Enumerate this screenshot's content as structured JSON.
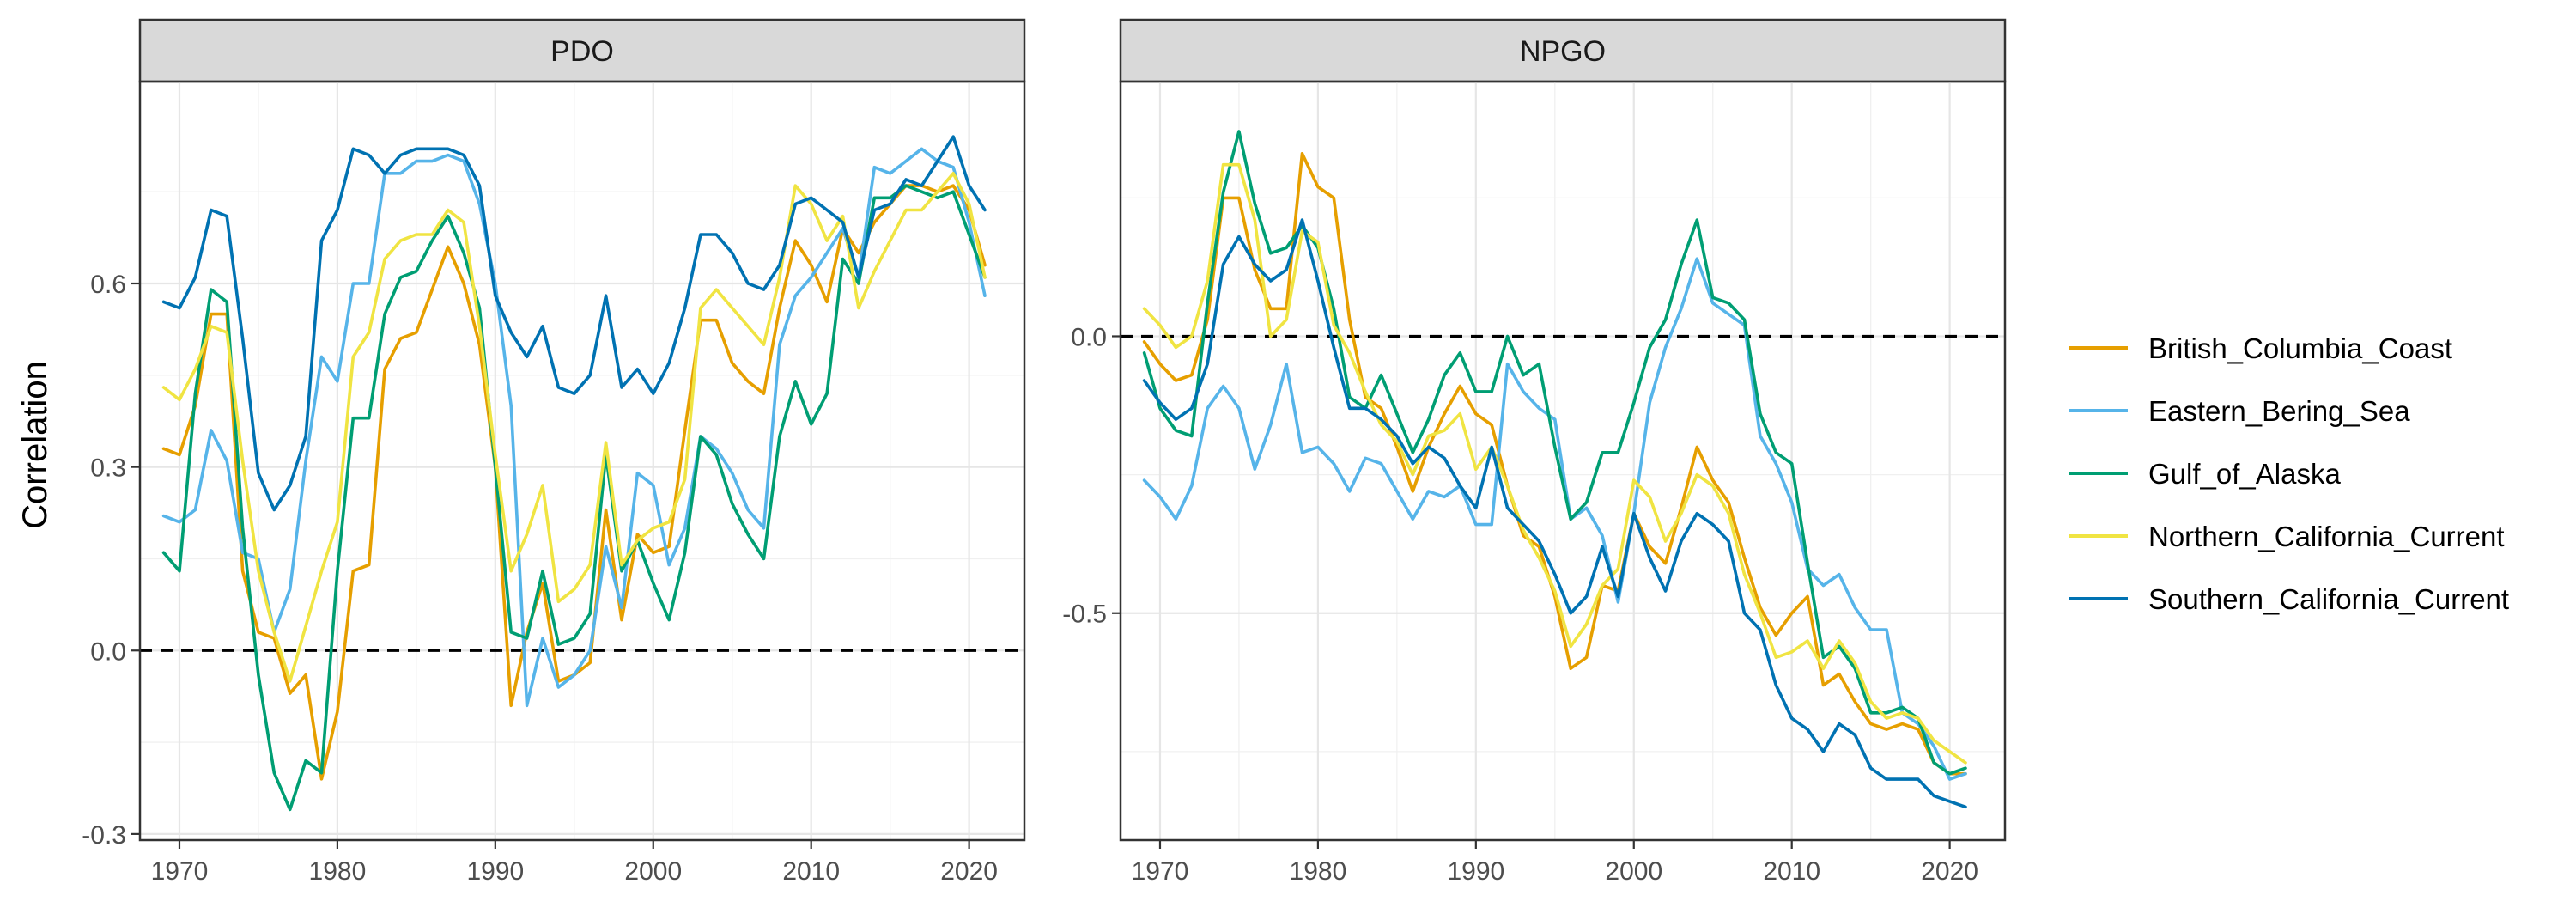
{
  "y_axis_label": "Correlation",
  "colors": {
    "British_Columbia_Coast": "#E69F00",
    "Eastern_Bering_Sea": "#56B4E9",
    "Gulf_of_Alaska": "#009E73",
    "Northern_California_Current": "#F0E442",
    "Southern_California_Current": "#0072B2"
  },
  "legend": {
    "placement": "right",
    "entries": [
      "British_Columbia_Coast",
      "Eastern_Bering_Sea",
      "Gulf_of_Alaska",
      "Northern_California_Current",
      "Southern_California_Current"
    ]
  },
  "chart_data": [
    {
      "type": "line",
      "panel_title": "PDO",
      "xlim": [
        1967.5,
        2023.5
      ],
      "ylim": [
        -0.31,
        0.93
      ],
      "x_ticks": [
        1970,
        1980,
        1990,
        2000,
        2010,
        2020
      ],
      "y_ticks": [
        -0.3,
        0.0,
        0.3,
        0.6
      ],
      "y_tick_labels": [
        "-0.3",
        "0.0",
        "0.3",
        "0.6"
      ],
      "reference_line": 0.0,
      "grid": true,
      "x": [
        1969,
        1970,
        1971,
        1972,
        1973,
        1974,
        1975,
        1976,
        1977,
        1978,
        1979,
        1980,
        1981,
        1982,
        1983,
        1984,
        1985,
        1986,
        1987,
        1988,
        1989,
        1990,
        1991,
        1992,
        1993,
        1994,
        1995,
        1996,
        1997,
        1998,
        1999,
        2000,
        2001,
        2002,
        2003,
        2004,
        2005,
        2006,
        2007,
        2008,
        2009,
        2010,
        2011,
        2012,
        2013,
        2014,
        2015,
        2016,
        2017,
        2018,
        2019,
        2020,
        2021
      ],
      "series": [
        {
          "name": "British_Columbia_Coast",
          "values": [
            0.33,
            0.32,
            0.4,
            0.55,
            0.55,
            0.13,
            0.03,
            0.02,
            -0.07,
            -0.04,
            -0.21,
            -0.1,
            0.13,
            0.14,
            0.46,
            0.51,
            0.52,
            0.59,
            0.66,
            0.6,
            0.5,
            0.3,
            -0.09,
            0.03,
            0.11,
            -0.05,
            -0.04,
            -0.02,
            0.23,
            0.05,
            0.19,
            0.16,
            0.17,
            0.36,
            0.54,
            0.54,
            0.47,
            0.44,
            0.42,
            0.56,
            0.67,
            0.63,
            0.57,
            0.69,
            0.65,
            0.7,
            0.73,
            0.76,
            0.76,
            0.75,
            0.76,
            0.72,
            0.63
          ]
        },
        {
          "name": "Eastern_Bering_Sea",
          "values": [
            0.22,
            0.21,
            0.23,
            0.36,
            0.31,
            0.16,
            0.15,
            0.03,
            0.1,
            0.31,
            0.48,
            0.44,
            0.6,
            0.6,
            0.78,
            0.78,
            0.8,
            0.8,
            0.81,
            0.8,
            0.73,
            0.6,
            0.4,
            -0.09,
            0.02,
            -0.06,
            -0.04,
            0.0,
            0.17,
            0.07,
            0.29,
            0.27,
            0.14,
            0.2,
            0.35,
            0.33,
            0.29,
            0.23,
            0.2,
            0.5,
            0.58,
            0.61,
            0.65,
            0.69,
            0.61,
            0.79,
            0.78,
            0.8,
            0.82,
            0.8,
            0.79,
            0.7,
            0.58
          ]
        },
        {
          "name": "Gulf_of_Alaska",
          "values": [
            0.16,
            0.13,
            0.42,
            0.59,
            0.57,
            0.2,
            -0.04,
            -0.2,
            -0.26,
            -0.18,
            -0.2,
            0.13,
            0.38,
            0.38,
            0.55,
            0.61,
            0.62,
            0.67,
            0.71,
            0.65,
            0.56,
            0.3,
            0.03,
            0.02,
            0.13,
            0.01,
            0.02,
            0.06,
            0.32,
            0.13,
            0.18,
            0.11,
            0.05,
            0.16,
            0.35,
            0.32,
            0.24,
            0.19,
            0.15,
            0.35,
            0.44,
            0.37,
            0.42,
            0.64,
            0.6,
            0.74,
            0.74,
            0.76,
            0.75,
            0.74,
            0.75,
            0.68,
            0.61
          ]
        },
        {
          "name": "Northern_California_Current",
          "values": [
            0.43,
            0.41,
            0.46,
            0.53,
            0.52,
            0.31,
            0.13,
            0.03,
            -0.05,
            0.04,
            0.13,
            0.21,
            0.48,
            0.52,
            0.64,
            0.67,
            0.68,
            0.68,
            0.72,
            0.7,
            0.53,
            0.32,
            0.13,
            0.19,
            0.27,
            0.08,
            0.1,
            0.14,
            0.34,
            0.14,
            0.18,
            0.2,
            0.21,
            0.28,
            0.56,
            0.59,
            0.56,
            0.53,
            0.5,
            0.61,
            0.76,
            0.73,
            0.67,
            0.71,
            0.56,
            0.62,
            0.67,
            0.72,
            0.72,
            0.75,
            0.78,
            0.73,
            0.61
          ]
        },
        {
          "name": "Southern_California_Current",
          "values": [
            0.57,
            0.56,
            0.61,
            0.72,
            0.71,
            0.51,
            0.29,
            0.23,
            0.27,
            0.35,
            0.67,
            0.72,
            0.82,
            0.81,
            0.78,
            0.81,
            0.82,
            0.82,
            0.82,
            0.81,
            0.76,
            0.58,
            0.52,
            0.48,
            0.53,
            0.43,
            0.42,
            0.45,
            0.58,
            0.43,
            0.46,
            0.42,
            0.47,
            0.56,
            0.68,
            0.68,
            0.65,
            0.6,
            0.59,
            0.63,
            0.73,
            0.74,
            0.72,
            0.7,
            0.61,
            0.72,
            0.73,
            0.77,
            0.76,
            0.8,
            0.84,
            0.76,
            0.72
          ]
        }
      ]
    },
    {
      "type": "line",
      "panel_title": "NPGO",
      "xlim": [
        1967.5,
        2023.5
      ],
      "ylim": [
        -0.91,
        0.46
      ],
      "x_ticks": [
        1970,
        1980,
        1990,
        2000,
        2010,
        2020
      ],
      "y_ticks": [
        -0.5,
        0.0
      ],
      "y_tick_labels": [
        "-0.5",
        "0.0"
      ],
      "reference_line": 0.0,
      "grid": true,
      "x": [
        1969,
        1970,
        1971,
        1972,
        1973,
        1974,
        1975,
        1976,
        1977,
        1978,
        1979,
        1980,
        1981,
        1982,
        1983,
        1984,
        1985,
        1986,
        1987,
        1988,
        1989,
        1990,
        1991,
        1992,
        1993,
        1994,
        1995,
        1996,
        1997,
        1998,
        1999,
        2000,
        2001,
        2002,
        2003,
        2004,
        2005,
        2006,
        2007,
        2008,
        2009,
        2010,
        2011,
        2012,
        2013,
        2014,
        2015,
        2016,
        2017,
        2018,
        2019,
        2020,
        2021
      ],
      "series": [
        {
          "name": "British_Columbia_Coast",
          "values": [
            -0.01,
            -0.05,
            -0.08,
            -0.07,
            0.03,
            0.25,
            0.25,
            0.12,
            0.05,
            0.05,
            0.33,
            0.27,
            0.25,
            0.03,
            -0.11,
            -0.13,
            -0.2,
            -0.28,
            -0.2,
            -0.14,
            -0.09,
            -0.14,
            -0.16,
            -0.27,
            -0.36,
            -0.38,
            -0.47,
            -0.6,
            -0.58,
            -0.45,
            -0.46,
            -0.32,
            -0.38,
            -0.41,
            -0.31,
            -0.2,
            -0.26,
            -0.3,
            -0.4,
            -0.49,
            -0.54,
            -0.5,
            -0.47,
            -0.63,
            -0.61,
            -0.66,
            -0.7,
            -0.71,
            -0.7,
            -0.71,
            -0.77,
            -0.79,
            -0.79
          ]
        },
        {
          "name": "Eastern_Bering_Sea",
          "values": [
            -0.26,
            -0.29,
            -0.33,
            -0.27,
            -0.13,
            -0.09,
            -0.13,
            -0.24,
            -0.16,
            -0.05,
            -0.21,
            -0.2,
            -0.23,
            -0.28,
            -0.22,
            -0.23,
            -0.28,
            -0.33,
            -0.28,
            -0.29,
            -0.27,
            -0.34,
            -0.34,
            -0.05,
            -0.1,
            -0.13,
            -0.15,
            -0.33,
            -0.31,
            -0.36,
            -0.48,
            -0.32,
            -0.12,
            -0.02,
            0.05,
            0.14,
            0.06,
            0.04,
            0.02,
            -0.18,
            -0.23,
            -0.3,
            -0.42,
            -0.45,
            -0.43,
            -0.49,
            -0.53,
            -0.53,
            -0.68,
            -0.7,
            -0.74,
            -0.8,
            -0.79
          ]
        },
        {
          "name": "Gulf_of_Alaska",
          "values": [
            -0.03,
            -0.13,
            -0.17,
            -0.18,
            0.06,
            0.26,
            0.37,
            0.24,
            0.15,
            0.16,
            0.2,
            0.16,
            0.05,
            -0.11,
            -0.13,
            -0.07,
            -0.14,
            -0.21,
            -0.15,
            -0.07,
            -0.03,
            -0.1,
            -0.1,
            0.0,
            -0.07,
            -0.05,
            -0.2,
            -0.33,
            -0.3,
            -0.21,
            -0.21,
            -0.12,
            -0.02,
            0.03,
            0.13,
            0.21,
            0.07,
            0.06,
            0.03,
            -0.14,
            -0.21,
            -0.23,
            -0.41,
            -0.58,
            -0.56,
            -0.6,
            -0.68,
            -0.68,
            -0.67,
            -0.69,
            -0.77,
            -0.79,
            -0.78
          ]
        },
        {
          "name": "Northern_California_Current",
          "values": [
            0.05,
            0.02,
            -0.02,
            0.0,
            0.1,
            0.31,
            0.31,
            0.21,
            0.0,
            0.03,
            0.19,
            0.17,
            0.02,
            -0.03,
            -0.1,
            -0.16,
            -0.19,
            -0.25,
            -0.18,
            -0.17,
            -0.14,
            -0.24,
            -0.2,
            -0.27,
            -0.35,
            -0.4,
            -0.46,
            -0.56,
            -0.52,
            -0.45,
            -0.42,
            -0.26,
            -0.29,
            -0.37,
            -0.32,
            -0.25,
            -0.27,
            -0.32,
            -0.43,
            -0.5,
            -0.58,
            -0.57,
            -0.55,
            -0.6,
            -0.55,
            -0.59,
            -0.66,
            -0.69,
            -0.68,
            -0.69,
            -0.73,
            -0.75,
            -0.77
          ]
        },
        {
          "name": "Southern_California_Current",
          "values": [
            -0.08,
            -0.12,
            -0.15,
            -0.13,
            -0.05,
            0.13,
            0.18,
            0.13,
            0.1,
            0.12,
            0.21,
            0.1,
            -0.02,
            -0.13,
            -0.13,
            -0.15,
            -0.18,
            -0.23,
            -0.2,
            -0.22,
            -0.27,
            -0.31,
            -0.2,
            -0.31,
            -0.34,
            -0.37,
            -0.43,
            -0.5,
            -0.47,
            -0.38,
            -0.47,
            -0.32,
            -0.4,
            -0.46,
            -0.37,
            -0.32,
            -0.34,
            -0.37,
            -0.5,
            -0.53,
            -0.63,
            -0.69,
            -0.71,
            -0.75,
            -0.7,
            -0.72,
            -0.78,
            -0.8,
            -0.8,
            -0.8,
            -0.83,
            -0.84,
            -0.85
          ]
        }
      ]
    }
  ]
}
